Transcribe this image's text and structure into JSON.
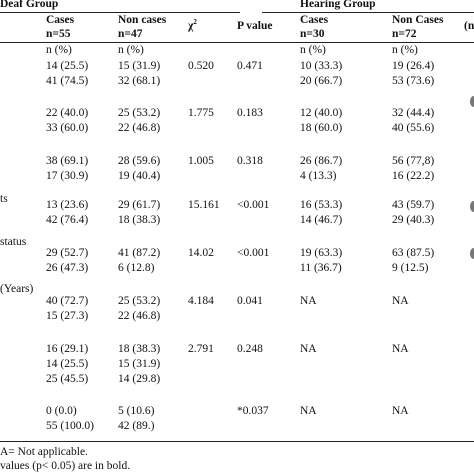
{
  "header": {
    "deaf_group": "Deaf Group",
    "hearing_group": "Hearing Group",
    "cases_label": "Cases",
    "deaf_noncases_label": "Non cases",
    "hearing_noncases_label": "Non Cases",
    "deaf_cases_n": "n=55",
    "deaf_noncases_n": "n=47",
    "chi_label": "χ",
    "chi_sup": "2",
    "p_label": "P value",
    "hearing_cases_n": "n=30",
    "hearing_noncases_n": "n=72",
    "clipped": "(n"
  },
  "col_units": [
    "n (%)",
    "n (%)",
    "n (%)",
    "n (%)"
  ],
  "row_labels": {
    "label_1": "ts",
    "label_2": "status",
    "label_3": "(Years)"
  },
  "rows": [
    {
      "deaf_cases": "14 (25.5)",
      "deaf_noncases": "15 (31.9)",
      "chi": "0.520",
      "p": "0.471",
      "hear_cases": "10 (33.3)",
      "hear_noncases": "19 (26.4)"
    },
    {
      "deaf_cases": "41 (74.5)",
      "deaf_noncases": "32 (68.1)",
      "chi": "",
      "p": "",
      "hear_cases": "20 (66.7)",
      "hear_noncases": "53 (73.6)"
    },
    {
      "deaf_cases": "22 (40.0)",
      "deaf_noncases": "25 (53.2)",
      "chi": "1.775",
      "p": "0.183",
      "hear_cases": "12 (40.0)",
      "hear_noncases": "32 (44.4)"
    },
    {
      "deaf_cases": "33 (60.0)",
      "deaf_noncases": "22 (46.8)",
      "chi": "",
      "p": "",
      "hear_cases": "18 (60.0)",
      "hear_noncases": "40 (55.6)"
    },
    {
      "deaf_cases": "38 (69.1)",
      "deaf_noncases": "28 (59.6)",
      "chi": "1.005",
      "p": "0.318",
      "hear_cases": "26 (86.7)",
      "hear_noncases": "56 (77,8)"
    },
    {
      "deaf_cases": "17 (30.9)",
      "deaf_noncases": "19 (40.4)",
      "chi": "",
      "p": "",
      "hear_cases": "4 (13.3)",
      "hear_noncases": "16 (22.2)"
    },
    {
      "deaf_cases": "13 (23.6)",
      "deaf_noncases": "29 (61.7)",
      "chi": "15.161",
      "p": "<0.001",
      "hear_cases": "16 (53.3)",
      "hear_noncases": "43 (59.7)"
    },
    {
      "deaf_cases": "42 (76.4)",
      "deaf_noncases": "18 (38.3)",
      "chi": "",
      "p": "",
      "hear_cases": "14 (46.7)",
      "hear_noncases": "29 (40.3)"
    },
    {
      "deaf_cases": "29 (52.7)",
      "deaf_noncases": "41 (87.2)",
      "chi": "14.02",
      "p": "<0.001",
      "hear_cases": "19 (63.3)",
      "hear_noncases": "63 (87.5)"
    },
    {
      "deaf_cases": "26 (47.3)",
      "deaf_noncases": "6 (12.8)",
      "chi": "",
      "p": "",
      "hear_cases": "11 (36.7)",
      "hear_noncases": "9 (12.5)"
    },
    {
      "deaf_cases": "40 (72.7)",
      "deaf_noncases": "25 (53.2)",
      "chi": "4.184",
      "p": "0.041",
      "hear_cases": "NA",
      "hear_noncases": "NA"
    },
    {
      "deaf_cases": "15 (27.3)",
      "deaf_noncases": "22 (46.8)",
      "chi": "",
      "p": "",
      "hear_cases": "",
      "hear_noncases": ""
    },
    {
      "deaf_cases": "16 (29.1)",
      "deaf_noncases": "18 (38.3)",
      "chi": "2.791",
      "p": "0.248",
      "hear_cases": "NA",
      "hear_noncases": "NA"
    },
    {
      "deaf_cases": "14 (25.5)",
      "deaf_noncases": "15 (31.9)",
      "chi": "",
      "p": "",
      "hear_cases": "",
      "hear_noncases": ""
    },
    {
      "deaf_cases": "25 (45.5)",
      "deaf_noncases": "14 (29.8)",
      "chi": "",
      "p": "",
      "hear_cases": "",
      "hear_noncases": ""
    },
    {
      "deaf_cases": "0 (0.0)",
      "deaf_noncases": "5 (10.6)",
      "chi": "",
      "p": "*0.037",
      "hear_cases": "NA",
      "hear_noncases": "NA"
    },
    {
      "deaf_cases": "55 (100.0)",
      "deaf_noncases": "42 (89.)",
      "chi": "",
      "p": "",
      "hear_cases": "",
      "hear_noncases": ""
    }
  ],
  "footnotes": {
    "note_1": "A= Not applicable.",
    "note_2": " values (p< 0.05) are in bold."
  }
}
